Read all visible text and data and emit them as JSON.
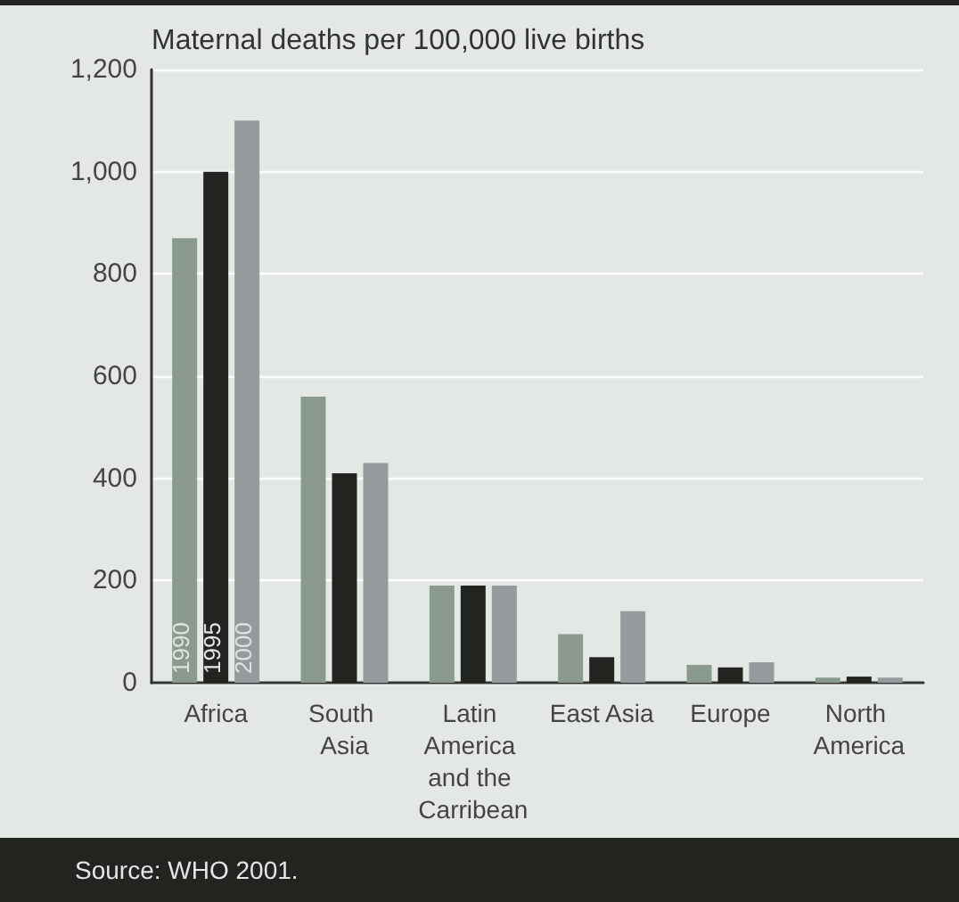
{
  "chart_data": {
    "type": "bar",
    "title": "Maternal deaths per 100,000 live births",
    "categories": [
      "Africa",
      "South Asia",
      "Latin America and the Carribean",
      "East Asia",
      "Europe",
      "North America"
    ],
    "series": [
      {
        "name": "1990",
        "color": "#8a9a8e",
        "values": [
          870,
          560,
          190,
          95,
          35,
          10
        ]
      },
      {
        "name": "1995",
        "color": "#222420",
        "values": [
          1000,
          410,
          190,
          50,
          30,
          12
        ]
      },
      {
        "name": "2000",
        "color": "#959a9c",
        "values": [
          1100,
          430,
          190,
          140,
          40,
          10
        ]
      }
    ],
    "ylim": [
      0,
      1200
    ],
    "yticks": [
      0,
      200,
      400,
      600,
      800,
      {
        "value": 1000,
        "label": "1,000"
      },
      {
        "value": 1200,
        "label": "1,200"
      }
    ],
    "grid": "y",
    "legend": false,
    "annotations": [
      "Source: WHO 2001."
    ]
  }
}
